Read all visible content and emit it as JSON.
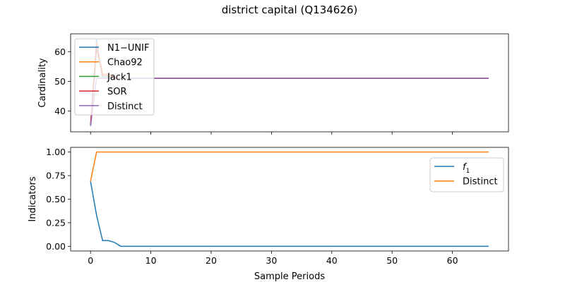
{
  "figure_title": "district capital (Q134626)",
  "chart_data": [
    {
      "type": "line",
      "ylabel": "Cardinality",
      "xlabel": "",
      "xlim": [
        -3.3,
        69.3
      ],
      "ylim": [
        33,
        66
      ],
      "xticks": [
        0,
        10,
        20,
        30,
        40,
        50,
        60
      ],
      "yticks": [
        40,
        50,
        60
      ],
      "show_xticklabels": false,
      "legend_position": "upper left",
      "series": [
        {
          "name": "N1−UNIF",
          "color": "#1f77b4",
          "x": [
            0,
            1,
            2,
            3,
            4,
            5,
            66
          ],
          "y": [
            35,
            64,
            51,
            51,
            51,
            51,
            51
          ]
        },
        {
          "name": "Chao92",
          "color": "#ff7f0e",
          "x": [
            0,
            1,
            2,
            3,
            4,
            5,
            66
          ],
          "y": [
            35,
            63,
            52.5,
            52.5,
            51.5,
            51,
            51
          ]
        },
        {
          "name": "Jack1",
          "color": "#2ca02c",
          "x": [
            0,
            1,
            2,
            3,
            4,
            5,
            66
          ],
          "y": [
            35,
            61,
            51.5,
            51.5,
            51,
            51,
            51
          ]
        },
        {
          "name": "SOR",
          "color": "#d62728",
          "x": [
            0,
            1,
            2,
            3,
            4,
            5,
            66
          ],
          "y": [
            35,
            62,
            52,
            52,
            51.2,
            51,
            51
          ]
        },
        {
          "name": "Distinct",
          "color": "#9467bd",
          "x": [
            0,
            1,
            2,
            3,
            4,
            5,
            66
          ],
          "y": [
            35,
            51,
            51,
            51,
            51,
            51,
            51
          ]
        }
      ]
    },
    {
      "type": "line",
      "ylabel": "Indicators",
      "xlabel": "Sample Periods",
      "xlim": [
        -3.3,
        69.3
      ],
      "ylim": [
        -0.05,
        1.05
      ],
      "xticks": [
        0,
        10,
        20,
        30,
        40,
        50,
        60
      ],
      "xticklabels": [
        "0",
        "10",
        "20",
        "30",
        "40",
        "50",
        "60"
      ],
      "yticks": [
        0.0,
        0.25,
        0.5,
        0.75,
        1.0
      ],
      "yticklabels": [
        "0.00",
        "0.25",
        "0.50",
        "0.75",
        "1.00"
      ],
      "legend_position": "upper right",
      "series": [
        {
          "name": "f",
          "name_subscript": "1",
          "color": "#1f77b4",
          "x": [
            0,
            1,
            2,
            3,
            4,
            5,
            66
          ],
          "y": [
            0.69,
            0.33,
            0.06,
            0.06,
            0.04,
            0.0,
            0.0
          ]
        },
        {
          "name": "Distinct",
          "color": "#ff7f0e",
          "x": [
            0,
            1,
            2,
            66
          ],
          "y": [
            0.69,
            1.0,
            1.0,
            1.0
          ]
        }
      ]
    }
  ]
}
